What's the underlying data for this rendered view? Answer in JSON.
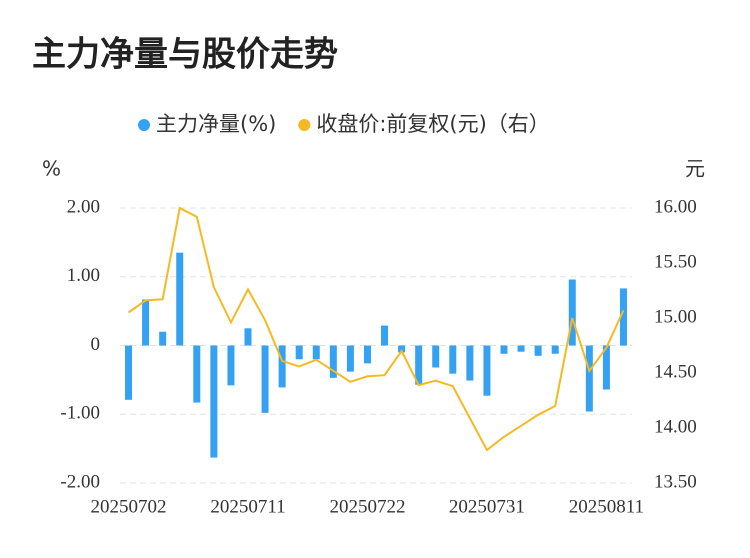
{
  "chart_data": {
    "type": "bar_line",
    "title": "主力净量与股价走势",
    "y_label": "%",
    "y2_label": "元",
    "categories": [
      "20250702",
      null,
      null,
      null,
      null,
      null,
      null,
      "20250711",
      null,
      null,
      null,
      null,
      null,
      null,
      "20250722",
      null,
      null,
      null,
      null,
      null,
      null,
      "20250731",
      null,
      null,
      null,
      null,
      null,
      null,
      "20250811",
      null
    ],
    "series": [
      {
        "name": "主力净量(%)",
        "type": "bar",
        "color": "#35a1f2",
        "values": [
          -0.79,
          0.67,
          0.2,
          1.35,
          -0.83,
          -1.63,
          -0.58,
          0.25,
          -0.98,
          -0.61,
          -0.2,
          -0.2,
          -0.47,
          -0.38,
          -0.26,
          0.29,
          -0.1,
          -0.57,
          -0.32,
          -0.41,
          -0.51,
          -0.73,
          -0.12,
          -0.09,
          -0.15,
          -0.12,
          0.96,
          -0.96,
          -0.64,
          0.83
        ]
      },
      {
        "name": "收盘价:前复权(元)（右）",
        "type": "line",
        "axis": "y2",
        "color": "#f5b922",
        "values": [
          15.05,
          15.16,
          15.17,
          16.0,
          15.92,
          15.28,
          14.96,
          15.26,
          14.98,
          14.61,
          14.56,
          14.62,
          14.52,
          14.42,
          14.47,
          14.48,
          14.7,
          14.39,
          14.43,
          14.38,
          14.09,
          13.8,
          13.92,
          14.02,
          14.12,
          14.2,
          15.0,
          14.52,
          14.73,
          15.07
        ]
      }
    ],
    "ylim": [
      -2,
      2
    ],
    "yticks": [
      {
        "value": 2,
        "label": "2.00"
      },
      {
        "value": 1,
        "label": "1.00"
      },
      0,
      {
        "value": -1,
        "label": "-1.00"
      },
      {
        "value": -2,
        "label": "-2.00"
      }
    ],
    "y2lim": [
      13.5,
      16
    ],
    "y2ticks": [
      {
        "value": 16,
        "label": "16.00"
      },
      {
        "value": 15.5,
        "label": "15.50"
      },
      {
        "value": 15,
        "label": "15.00"
      },
      {
        "value": 14.5,
        "label": "14.50"
      },
      {
        "value": 14,
        "label": "14.00"
      },
      {
        "value": 13.5,
        "label": "13.50"
      }
    ],
    "grid": true
  }
}
